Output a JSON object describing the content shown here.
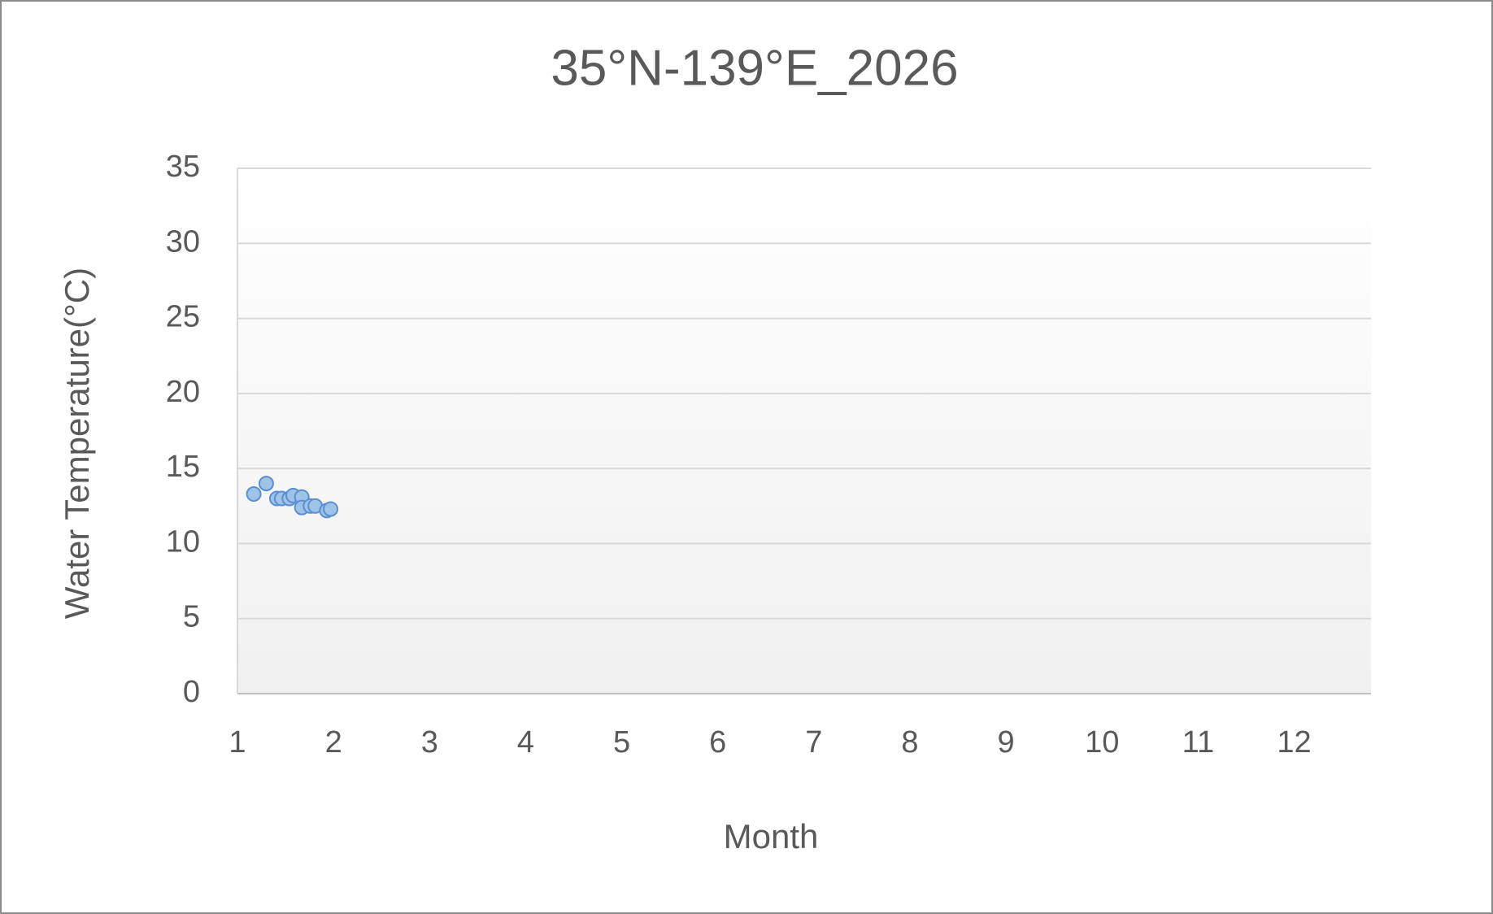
{
  "chart_data": {
    "type": "scatter",
    "title": "35°N-139°E_2026",
    "x_label": "Month",
    "y_label": "Water Temperature(°C)",
    "series": [
      {
        "color": "#9dc3e6",
        "x": [
          1.17,
          1.3,
          1.41,
          1.46,
          1.54,
          1.58,
          1.67,
          1.67,
          1.76,
          1.81,
          1.93,
          1.97
        ],
        "values": [
          13.3,
          14.0,
          13.0,
          13.0,
          13.0,
          13.2,
          13.1,
          12.4,
          12.5,
          12.5,
          12.2,
          12.3
        ]
      }
    ],
    "xlim": [
      1,
      12.8
    ],
    "xticks": [
      1,
      2,
      3,
      4,
      5,
      6,
      7,
      8,
      9,
      10,
      11,
      12
    ],
    "ylim": [
      0,
      35
    ],
    "yticks": [
      0,
      5,
      10,
      15,
      20,
      25,
      30,
      35
    ],
    "grid": true
  }
}
